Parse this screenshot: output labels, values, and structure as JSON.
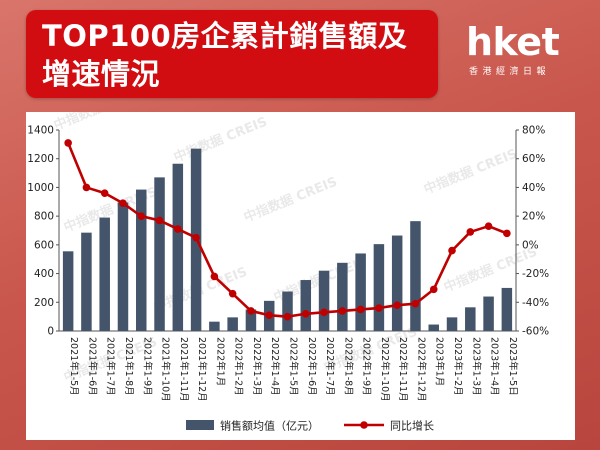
{
  "header": {
    "title": "TOP100房企累計銷售額及\n增速情況"
  },
  "logo": {
    "main": "hket",
    "sub": "香港經濟日報"
  },
  "watermark": "中指数据 CREIS",
  "chart_data": {
    "type": "bar+line",
    "categories": [
      "2021年1-5月",
      "2021年1-6月",
      "2021年1-7月",
      "2021年1-8月",
      "2021年1-9月",
      "2021年1-10月",
      "2021年1-11月",
      "2021年1-12月",
      "2022年1月",
      "2022年1-2月",
      "2022年1-3月",
      "2022年1-4月",
      "2022年1-5月",
      "2022年1-6月",
      "2022年1-7月",
      "2022年1-8月",
      "2022年1-9月",
      "2022年1-10月",
      "2022年1-11月",
      "2022年1-12月",
      "2023年1月",
      "2023年1-2月",
      "2023年1-3月",
      "2023年1-4月",
      "2023年1-5日"
    ],
    "series": [
      {
        "name": "销售额均值（亿元）",
        "type": "bar",
        "axis": "left",
        "color": "#44546a",
        "values": [
          555,
          685,
          790,
          895,
          985,
          1070,
          1165,
          1270,
          65,
          95,
          150,
          210,
          275,
          355,
          420,
          475,
          540,
          605,
          665,
          765,
          45,
          95,
          165,
          240,
          300
        ]
      },
      {
        "name": "同比增长",
        "type": "line",
        "axis": "right",
        "color": "#c00000",
        "values": [
          71,
          40,
          36,
          29,
          20,
          17,
          11,
          5,
          -22,
          -34,
          -46,
          -49,
          -50,
          -48,
          -47,
          -46,
          -45,
          -44,
          -42,
          -41,
          -31,
          -4,
          9,
          13,
          8
        ]
      }
    ],
    "y_left": {
      "min": 0,
      "max": 1400,
      "ticks": [
        0,
        200,
        400,
        600,
        800,
        1000,
        1200,
        1400
      ]
    },
    "y_right": {
      "min": -60,
      "max": 80,
      "ticks": [
        "-60%",
        "-40%",
        "-20%",
        "0%",
        "20%",
        "40%",
        "60%",
        "80%"
      ]
    },
    "legend_position": "bottom",
    "grid": false
  }
}
